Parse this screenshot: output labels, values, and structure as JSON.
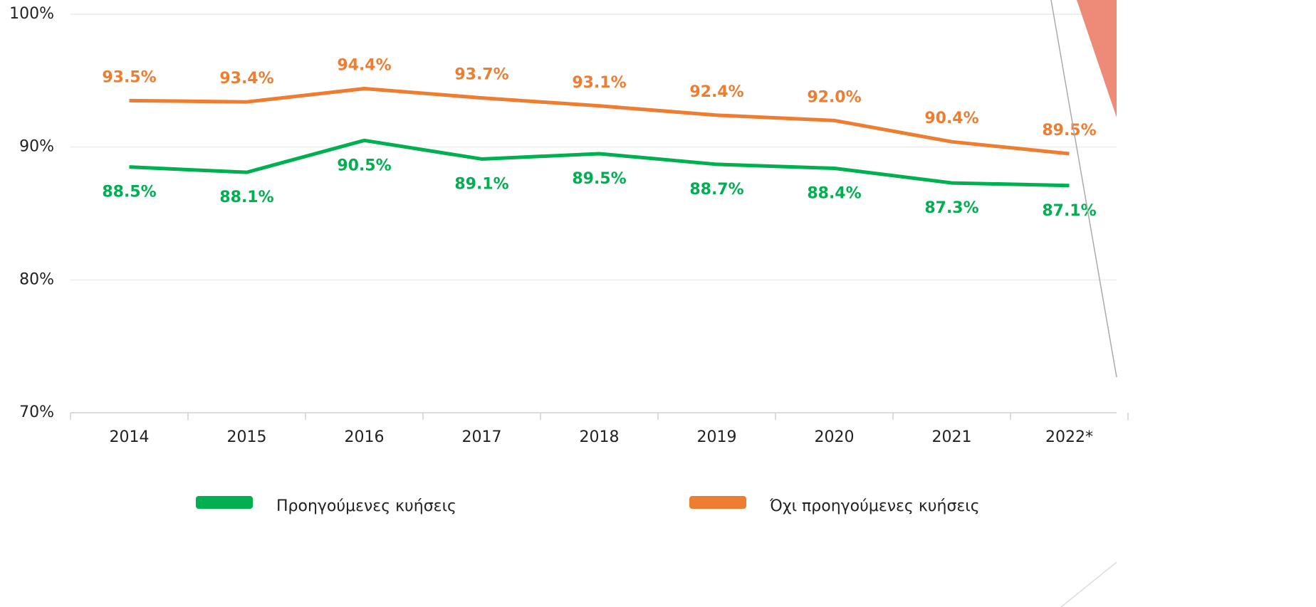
{
  "chart_data": {
    "type": "line",
    "categories": [
      "2014",
      "2015",
      "2016",
      "2017",
      "2018",
      "2019",
      "2020",
      "2021",
      "2022*"
    ],
    "series": [
      {
        "name": "Προηγούμενες κυήσεις",
        "color": "#00b050",
        "values": [
          88.5,
          88.1,
          90.5,
          89.1,
          89.5,
          88.7,
          88.4,
          87.3,
          87.1
        ],
        "value_labels": [
          "88.5%",
          "88.1%",
          "90.5%",
          "89.1%",
          "89.5%",
          "88.7%",
          "88.4%",
          "87.3%",
          "87.1%"
        ]
      },
      {
        "name": "Όχι προηγούμενες κυήσεις",
        "color": "#ed7d31",
        "values": [
          93.5,
          93.4,
          94.4,
          93.7,
          93.1,
          92.4,
          92.0,
          90.4,
          89.5
        ],
        "value_labels": [
          "93.5%",
          "93.4%",
          "94.4%",
          "93.7%",
          "93.1%",
          "92.4%",
          "92.0%",
          "90.4%",
          "89.5%"
        ]
      }
    ],
    "ylim": [
      70,
      100
    ],
    "yticks": [
      {
        "value": 70,
        "label": "70%"
      },
      {
        "value": 80,
        "label": "80%"
      },
      {
        "value": 90,
        "label": "90%"
      },
      {
        "value": 100,
        "label": "100%"
      }
    ],
    "grid": true,
    "legend": "bottom"
  }
}
